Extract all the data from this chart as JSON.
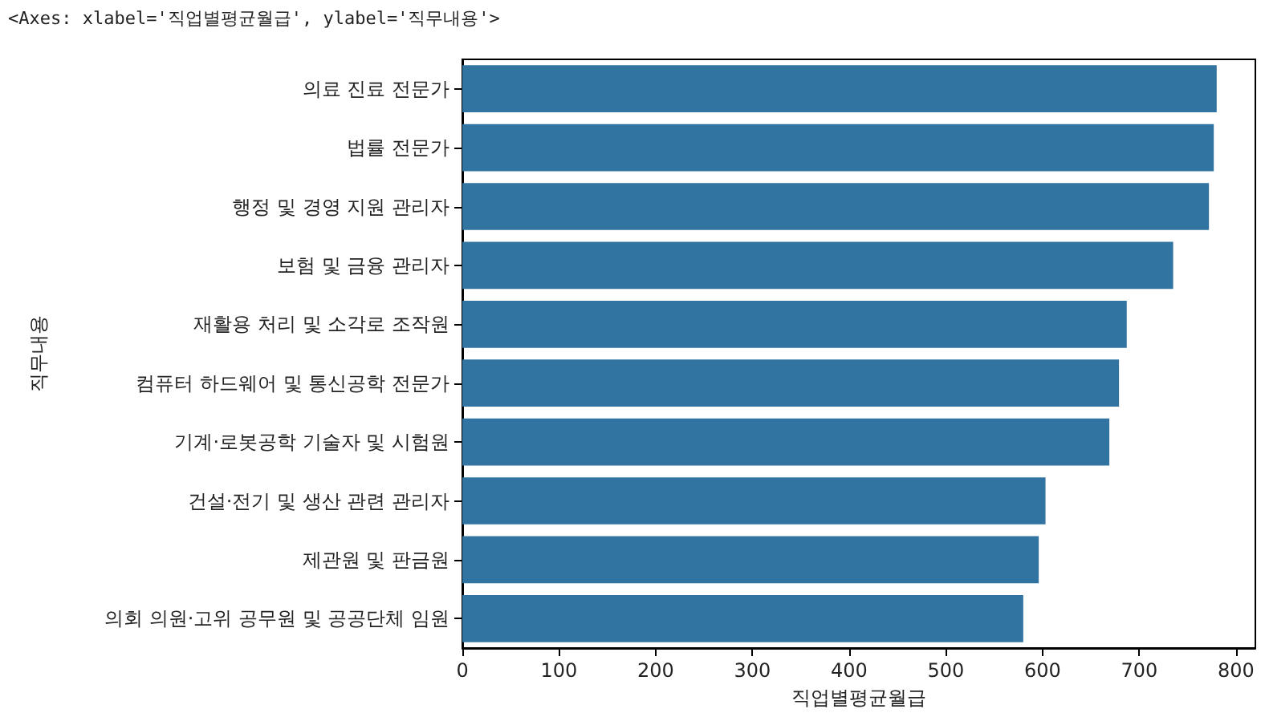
{
  "chart_data": {
    "type": "bar",
    "orientation": "horizontal",
    "xlabel": "직업별평균월급",
    "ylabel": "직무내용",
    "annotations": [
      "<Axes: xlabel='직업별평균월급', ylabel='직무내용'>"
    ],
    "categories": [
      "의료 진료 전문가",
      "법률 전문가",
      "행정 및 경영 지원 관리자",
      "보험 및 금융 관리자",
      "재활용 처리 및 소각로 조작원",
      "컴퓨터 하드웨어 및 통신공학 전문가",
      "기계·로봇공학 기술자 및 시험원",
      "건설·전기 및 생산 관련 관리자",
      "제관원 및 판금원",
      "의회 의원·고위 공무원 및 공공단체 임원"
    ],
    "values": [
      780,
      777,
      772,
      735,
      687,
      679,
      669,
      603,
      596,
      580
    ],
    "color": "#3274a1",
    "xlim": [
      0,
      820
    ],
    "xticks": [
      0,
      100,
      200,
      300,
      400,
      500,
      600,
      700,
      800
    ],
    "grid": false
  }
}
